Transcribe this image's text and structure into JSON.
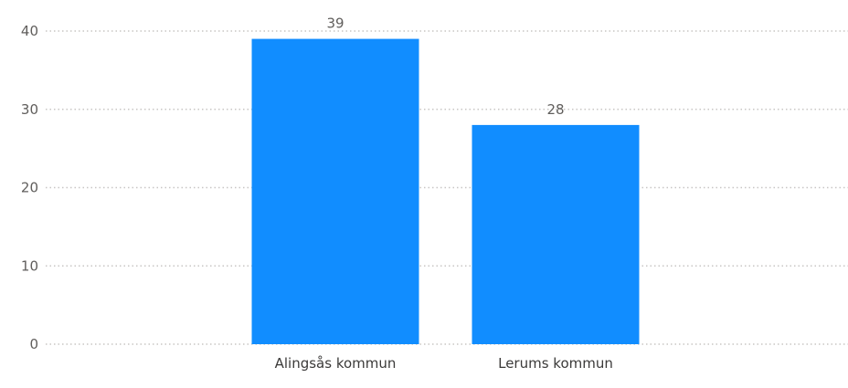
{
  "chart_data": {
    "type": "bar",
    "categories": [
      "Alingsås kommun",
      "Lerums kommun"
    ],
    "values": [
      39,
      28
    ],
    "data_labels": [
      "39",
      "28"
    ],
    "y_ticks": [
      0,
      10,
      20,
      30,
      40
    ],
    "y_tick_labels": [
      "0",
      "10",
      "20",
      "30",
      "40"
    ],
    "ylim": [
      0,
      40
    ],
    "grid": true,
    "bar_color": "#118dff"
  }
}
